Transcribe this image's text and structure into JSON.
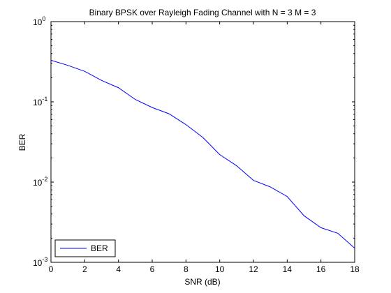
{
  "chart_data": {
    "type": "line",
    "title": "Binary BPSK over Rayleigh Fading Channel with N = 3 M = 3",
    "xlabel": "SNR (dB)",
    "ylabel": "BER",
    "xlim": [
      0,
      18
    ],
    "ylim": [
      0.001,
      1
    ],
    "yscale": "log",
    "grid": false,
    "legend_position": "bottom-left",
    "x_ticks": [
      0,
      2,
      4,
      6,
      8,
      10,
      12,
      14,
      16,
      18
    ],
    "y_ticks": [
      {
        "value": 1,
        "base": "10",
        "exp": "0"
      },
      {
        "value": 0.1,
        "base": "10",
        "exp": "-1"
      },
      {
        "value": 0.01,
        "base": "10",
        "exp": "-2"
      },
      {
        "value": 0.001,
        "base": "10",
        "exp": "-3"
      }
    ],
    "series": [
      {
        "name": "BER",
        "color": "#0000ff",
        "x": [
          0,
          1,
          2,
          3,
          4,
          5,
          6,
          7,
          8,
          9,
          10,
          11,
          12,
          13,
          14,
          15,
          16,
          17,
          18
        ],
        "y": [
          0.33,
          0.285,
          0.24,
          0.185,
          0.15,
          0.107,
          0.085,
          0.071,
          0.052,
          0.036,
          0.022,
          0.016,
          0.0105,
          0.0087,
          0.0066,
          0.0038,
          0.0027,
          0.0023,
          0.0015
        ]
      }
    ]
  }
}
